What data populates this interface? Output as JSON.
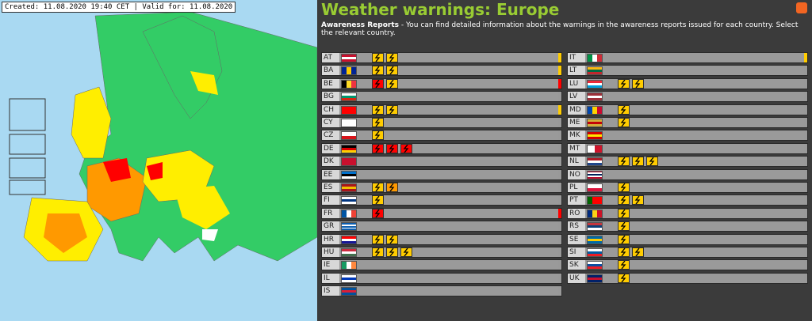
{
  "map": {
    "caption": "Created: 11.08.2020 19:40 CET | Valid for: 11.08.2020"
  },
  "header": {
    "title": "Weather warnings: Europe",
    "intro_bold": "Awareness Reports",
    "intro": "- You can find detailed information about the warnings in the awareness reports issued for each country. Select the relevant country."
  },
  "columns": [
    {
      "rows": [
        {
          "code": "AT",
          "flag": {
            "dir": "h",
            "colors": [
              "#c8102e",
              "#ffffff",
              "#c8102e"
            ]
          },
          "warnings": [
            "#ffcc00",
            "#ffcc00"
          ],
          "level": "#ffcc00"
        },
        {
          "code": "BA",
          "flag": {
            "dir": "v",
            "colors": [
              "#002395",
              "#fecb00",
              "#002395"
            ]
          },
          "warnings": [
            "#ffcc00",
            "#ffcc00"
          ],
          "level": "#ffcc00"
        },
        {
          "code": "BE",
          "flag": {
            "dir": "v",
            "colors": [
              "#000000",
              "#fdda24",
              "#ef3340"
            ]
          },
          "warnings": [
            "#ff0000",
            "#ffcc00"
          ],
          "level": "#ff0000"
        },
        {
          "code": "BG",
          "flag": {
            "dir": "h",
            "colors": [
              "#ffffff",
              "#00966e",
              "#d62612"
            ]
          },
          "warnings": [],
          "level": "#999999"
        },
        {
          "code": "CH",
          "flag": {
            "dir": "h",
            "colors": [
              "#ff0000"
            ]
          },
          "warnings": [
            "#ffcc00",
            "#ffcc00"
          ],
          "level": "#ffcc00"
        },
        {
          "code": "CY",
          "flag": {
            "dir": "h",
            "colors": [
              "#ffffff"
            ]
          },
          "warnings": [
            "#ffcc00"
          ],
          "level": "#999999"
        },
        {
          "code": "CZ",
          "flag": {
            "dir": "h",
            "colors": [
              "#ffffff",
              "#d7141a"
            ]
          },
          "warnings": [
            "#ffcc00"
          ],
          "level": "#999999"
        },
        {
          "code": "DE",
          "flag": {
            "dir": "h",
            "colors": [
              "#000000",
              "#dd0000",
              "#ffce00"
            ]
          },
          "warnings": [
            "#ff0000",
            "#ff0000",
            "#ff0000"
          ],
          "level": "#999999"
        },
        {
          "code": "DK",
          "flag": {
            "dir": "h",
            "colors": [
              "#c8102e"
            ]
          },
          "warnings": [],
          "level": "#999999"
        },
        {
          "code": "EE",
          "flag": {
            "dir": "h",
            "colors": [
              "#0072ce",
              "#000000",
              "#ffffff"
            ]
          },
          "warnings": [],
          "level": "#999999"
        },
        {
          "code": "ES",
          "flag": {
            "dir": "h",
            "colors": [
              "#aa151b",
              "#f1bf00",
              "#aa151b"
            ]
          },
          "warnings": [
            "#ffcc00",
            "#ff9900"
          ],
          "level": "#999999"
        },
        {
          "code": "FI",
          "flag": {
            "dir": "h",
            "colors": [
              "#ffffff",
              "#003580",
              "#ffffff"
            ]
          },
          "warnings": [
            "#ffcc00"
          ],
          "level": "#999999"
        },
        {
          "code": "FR",
          "flag": {
            "dir": "v",
            "colors": [
              "#0055a4",
              "#ffffff",
              "#ef4135"
            ]
          },
          "warnings": [
            "#ff0000"
          ],
          "level": "#ff0000"
        },
        {
          "code": "GR",
          "flag": {
            "dir": "h",
            "colors": [
              "#0d5eaf",
              "#ffffff",
              "#0d5eaf",
              "#ffffff",
              "#0d5eaf"
            ]
          },
          "warnings": [],
          "level": "#999999"
        },
        {
          "code": "HR",
          "flag": {
            "dir": "h",
            "colors": [
              "#ff0000",
              "#ffffff",
              "#171796"
            ]
          },
          "warnings": [
            "#ffcc00",
            "#ffcc00"
          ],
          "level": "#999999"
        },
        {
          "code": "HU",
          "flag": {
            "dir": "h",
            "colors": [
              "#cd2a3e",
              "#ffffff",
              "#436f4d"
            ]
          },
          "warnings": [
            "#ffcc00",
            "#ffcc00",
            "#ffcc00"
          ],
          "level": "#999999"
        },
        {
          "code": "IE",
          "flag": {
            "dir": "v",
            "colors": [
              "#169b62",
              "#ffffff",
              "#ff883e"
            ]
          },
          "warnings": [],
          "level": "#999999"
        },
        {
          "code": "IL",
          "flag": {
            "dir": "h",
            "colors": [
              "#ffffff",
              "#0038b8",
              "#ffffff"
            ]
          },
          "warnings": [],
          "level": "#999999"
        },
        {
          "code": "IS",
          "flag": {
            "dir": "h",
            "colors": [
              "#02529c",
              "#dc1e35",
              "#02529c"
            ]
          },
          "warnings": [],
          "level": "#999999"
        }
      ]
    },
    {
      "rows": [
        {
          "code": "IT",
          "flag": {
            "dir": "v",
            "colors": [
              "#009246",
              "#ffffff",
              "#ce2b37"
            ]
          },
          "warnings": [],
          "level": "#ffcc00"
        },
        {
          "code": "LT",
          "flag": {
            "dir": "h",
            "colors": [
              "#fdb913",
              "#006a44",
              "#c1272d"
            ]
          },
          "warnings": [],
          "level": "#999999"
        },
        {
          "code": "LU",
          "flag": {
            "dir": "h",
            "colors": [
              "#ed2939",
              "#ffffff",
              "#00a1de"
            ]
          },
          "warnings": [
            "#ffcc00",
            "#ffcc00"
          ],
          "level": "#999999"
        },
        {
          "code": "LV",
          "flag": {
            "dir": "h",
            "colors": [
              "#9e3039",
              "#ffffff",
              "#9e3039"
            ]
          },
          "warnings": [],
          "level": "#999999"
        },
        {
          "code": "MD",
          "flag": {
            "dir": "v",
            "colors": [
              "#0046ae",
              "#ffd200",
              "#cc092f"
            ]
          },
          "warnings": [
            "#ffcc00"
          ],
          "level": "#999999"
        },
        {
          "code": "ME",
          "flag": {
            "dir": "h",
            "colors": [
              "#d3ae3b",
              "#c40308",
              "#d3ae3b"
            ]
          },
          "warnings": [
            "#ffcc00"
          ],
          "level": "#999999"
        },
        {
          "code": "MK",
          "flag": {
            "dir": "h",
            "colors": [
              "#d20000",
              "#ffe600",
              "#d20000"
            ]
          },
          "warnings": [],
          "level": "#999999"
        },
        {
          "code": "MT",
          "flag": {
            "dir": "v",
            "colors": [
              "#ffffff",
              "#cf142b"
            ]
          },
          "warnings": [],
          "level": "#999999"
        },
        {
          "code": "NL",
          "flag": {
            "dir": "h",
            "colors": [
              "#ae1c28",
              "#ffffff",
              "#21468b"
            ]
          },
          "warnings": [
            "#ffcc00",
            "#ffcc00",
            "#ffcc00"
          ],
          "level": "#999999"
        },
        {
          "code": "NO",
          "flag": {
            "dir": "h",
            "colors": [
              "#ba0c2f",
              "#ffffff",
              "#00205b",
              "#ffffff",
              "#ba0c2f"
            ]
          },
          "warnings": [],
          "level": "#999999"
        },
        {
          "code": "PL",
          "flag": {
            "dir": "h",
            "colors": [
              "#ffffff",
              "#dc143c"
            ]
          },
          "warnings": [
            "#ffcc00"
          ],
          "level": "#999999"
        },
        {
          "code": "PT",
          "flag": {
            "dir": "v",
            "colors": [
              "#006600",
              "#ff0000",
              "#ff0000"
            ]
          },
          "warnings": [
            "#ffcc00",
            "#ffcc00"
          ],
          "level": "#999999"
        },
        {
          "code": "RO",
          "flag": {
            "dir": "v",
            "colors": [
              "#002b7f",
              "#fcd116",
              "#ce1126"
            ]
          },
          "warnings": [
            "#ffcc00"
          ],
          "level": "#999999"
        },
        {
          "code": "RS",
          "flag": {
            "dir": "h",
            "colors": [
              "#c6363c",
              "#0c4076",
              "#ffffff"
            ]
          },
          "warnings": [
            "#ffcc00"
          ],
          "level": "#999999"
        },
        {
          "code": "SE",
          "flag": {
            "dir": "h",
            "colors": [
              "#006aa7",
              "#fecc00",
              "#006aa7"
            ]
          },
          "warnings": [
            "#ffcc00"
          ],
          "level": "#999999"
        },
        {
          "code": "SI",
          "flag": {
            "dir": "h",
            "colors": [
              "#ffffff",
              "#005da4",
              "#ed1c24"
            ]
          },
          "warnings": [
            "#ffcc00",
            "#ffcc00"
          ],
          "level": "#999999"
        },
        {
          "code": "SK",
          "flag": {
            "dir": "h",
            "colors": [
              "#ffffff",
              "#0b4ea2",
              "#ee1c25"
            ]
          },
          "warnings": [
            "#ffcc00"
          ],
          "level": "#999999"
        },
        {
          "code": "UK",
          "flag": {
            "dir": "h",
            "colors": [
              "#012169",
              "#c8102e",
              "#012169"
            ]
          },
          "warnings": [
            "#ffcc00"
          ],
          "level": "#999999"
        }
      ]
    }
  ]
}
